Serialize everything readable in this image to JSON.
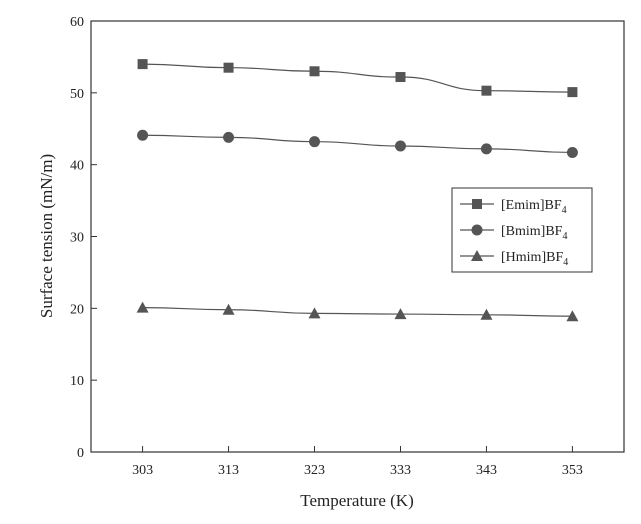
{
  "chart_data": {
    "type": "line",
    "xlabel": "Temperature (K)",
    "ylabel": "Surface tension (mN/m)",
    "x": [
      303,
      313,
      323,
      333,
      343,
      353
    ],
    "xticks": [
      "303",
      "313",
      "323",
      "333",
      "343",
      "353"
    ],
    "xlim": [
      297,
      359
    ],
    "ylim": [
      0,
      60
    ],
    "yticks": [
      0,
      10,
      20,
      30,
      40,
      50,
      60
    ],
    "grid": false,
    "legend_position": "right",
    "series": [
      {
        "name": "[Emim]BF",
        "subscript": "4",
        "marker": "square",
        "color": "#555555",
        "values": [
          54.0,
          53.5,
          53.0,
          52.2,
          50.3,
          50.1
        ]
      },
      {
        "name": "[Bmim]BF",
        "subscript": "4",
        "marker": "circle",
        "color": "#555555",
        "values": [
          44.1,
          43.8,
          43.2,
          42.6,
          42.2,
          41.7
        ]
      },
      {
        "name": "[Hmim]BF",
        "subscript": "4",
        "marker": "triangle",
        "color": "#555555",
        "values": [
          20.1,
          19.8,
          19.3,
          19.2,
          19.1,
          18.9
        ]
      }
    ]
  }
}
